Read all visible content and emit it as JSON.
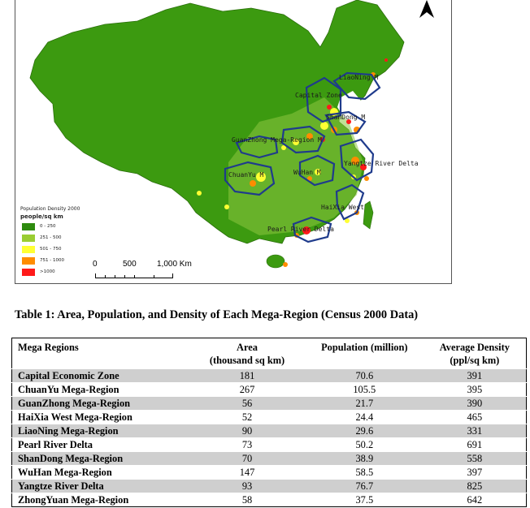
{
  "map": {
    "legend": {
      "title": "Population Density 2000",
      "unit": "people/sq km",
      "classes": [
        {
          "label": "0 - 250",
          "color": "#2e8b0f"
        },
        {
          "label": "251 - 500",
          "color": "#9acd32"
        },
        {
          "label": "501 - 750",
          "color": "#ffff33"
        },
        {
          "label": "751 - 1000",
          "color": "#ff8c00"
        },
        {
          "label": ">1000",
          "color": "#ff1a1a"
        }
      ]
    },
    "scale": {
      "zero": "0",
      "mid": "500",
      "max": "1,000 Km"
    },
    "region_labels": {
      "liaoning": "LiaoNing M",
      "capital": "Capital Zone",
      "shandong": "ShanDong M",
      "guanzhong": "GuanZhong Mega-Region M",
      "yangtze": "Yangtze River Delta",
      "chuanyu": "ChuanYu M",
      "wuhan": "WuHan M",
      "haixia": "HaiXia West",
      "pearl": "Pearl River Delta"
    },
    "colors": {
      "land": "#3c9a10",
      "boundary": "#1f3b8c",
      "water": "#ffffff"
    }
  },
  "caption": "Table 1: Area, Population, and Density of Each Mega-Region (Census 2000 Data)",
  "table": {
    "headers": {
      "region": "Mega Regions",
      "area_line1": "Area",
      "area_line2": "(thousand sq km)",
      "population": "Population (million)",
      "density_line1": "Average Density",
      "density_line2": "(ppl/sq km)"
    },
    "rows": [
      {
        "name": "Capital Economic Zone",
        "area": "181",
        "population": "70.6",
        "density": "391"
      },
      {
        "name": "ChuanYu Mega-Region",
        "area": "267",
        "population": "105.5",
        "density": "395"
      },
      {
        "name": "GuanZhong Mega-Region",
        "area": "56",
        "population": "21.7",
        "density": "390"
      },
      {
        "name": "HaiXia West Mega-Region",
        "area": "52",
        "population": "24.4",
        "density": "465"
      },
      {
        "name": "LiaoNing Mega-Region",
        "area": "90",
        "population": "29.6",
        "density": "331"
      },
      {
        "name": "Pearl River Delta",
        "area": "73",
        "population": "50.2",
        "density": "691"
      },
      {
        "name": "ShanDong Mega-Region",
        "area": "70",
        "population": "38.9",
        "density": "558"
      },
      {
        "name": "WuHan Mega-Region",
        "area": "147",
        "population": "58.5",
        "density": "397"
      },
      {
        "name": "Yangtze River Delta",
        "area": "93",
        "population": "76.7",
        "density": "825"
      },
      {
        "name": "ZhongYuan Mega-Region",
        "area": "58",
        "population": "37.5",
        "density": "642"
      }
    ]
  }
}
